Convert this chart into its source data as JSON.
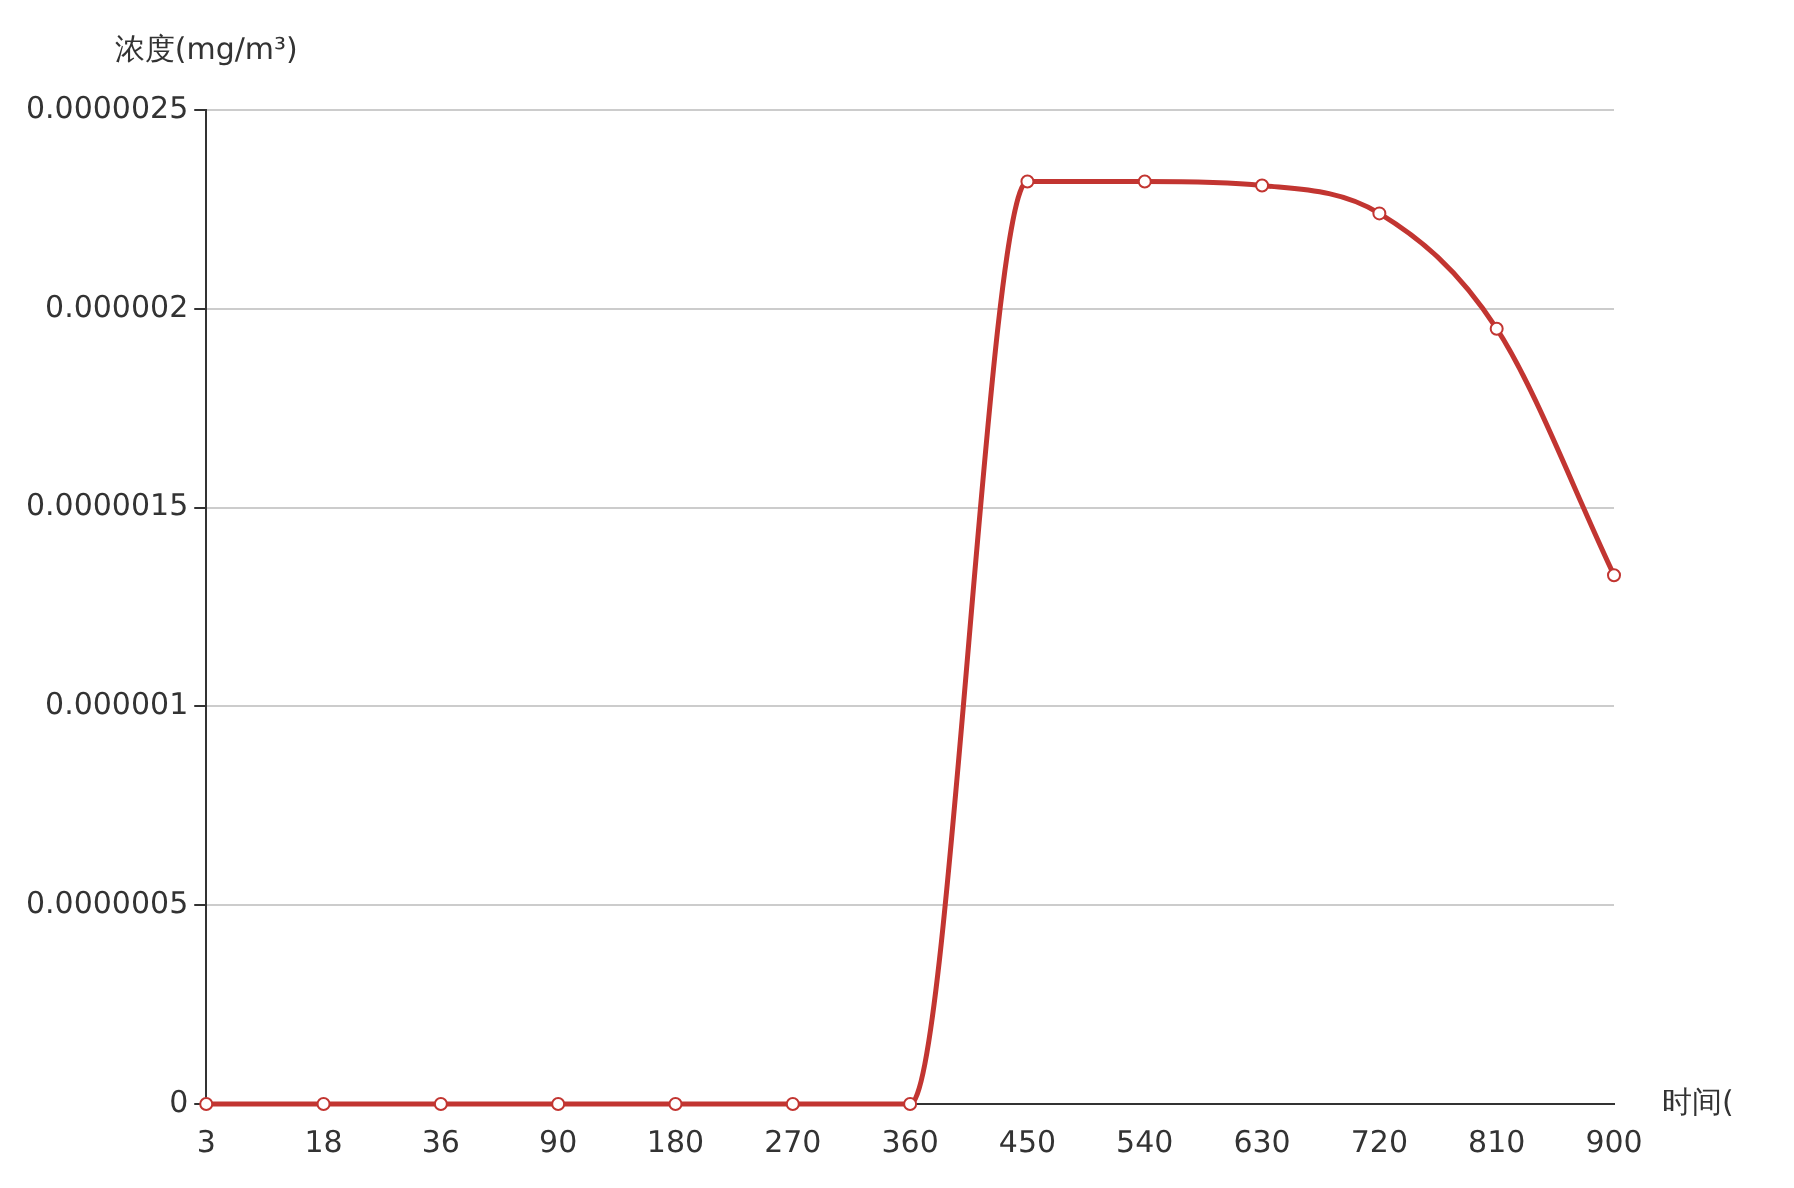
{
  "chart_data": {
    "type": "line",
    "xlabel": "时间(",
    "ylabel": "浓度(mg/m³)",
    "categories": [
      "3",
      "18",
      "36",
      "90",
      "180",
      "270",
      "360",
      "450",
      "540",
      "630",
      "720",
      "810",
      "900"
    ],
    "series": [
      {
        "color": "#c23531",
        "values": [
          0,
          0,
          0,
          0,
          0,
          0,
          0,
          2.32e-06,
          2.32e-06,
          2.31e-06,
          2.24e-06,
          1.95e-06,
          1.33e-06
        ]
      }
    ],
    "ylim": [
      0,
      2.5e-06
    ],
    "yticks": [
      0,
      {
        "value": 5e-07,
        "label": "0.0000005"
      },
      {
        "value": 1e-06,
        "label": "0.000001"
      },
      {
        "value": 1.5e-06,
        "label": "0.0000015"
      },
      {
        "value": 2e-06,
        "label": "0.000002"
      },
      {
        "value": 2.5e-06,
        "label": "0.0000025"
      }
    ],
    "grid": "y",
    "legend": false,
    "marker": "circle",
    "line_style": "solid"
  }
}
